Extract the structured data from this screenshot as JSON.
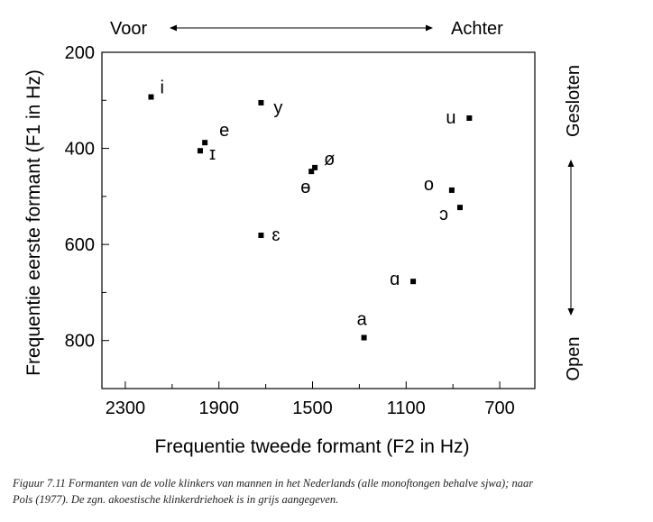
{
  "chart_data": {
    "type": "scatter",
    "xlabel": "Frequentie tweede formant (F2 in Hz)",
    "ylabel": "Frequentie eerste formant (F1 in Hz)",
    "xlim": [
      2400,
      550
    ],
    "ylim": [
      200,
      900
    ],
    "x_reversed": true,
    "y_reversed": true,
    "x_ticks": [
      2300,
      1900,
      1500,
      1100,
      700
    ],
    "y_ticks": [
      200,
      400,
      600,
      800
    ],
    "grid": false,
    "top_annotation": {
      "left": "Voor",
      "right": "Achter"
    },
    "right_annotation": {
      "top": "Gesloten",
      "bottom": "Open"
    },
    "points": [
      {
        "label": "i",
        "x": 2190,
        "y": 293
      },
      {
        "label": "y",
        "x": 1720,
        "y": 305
      },
      {
        "label": "u",
        "x": 830,
        "y": 337
      },
      {
        "label": "e",
        "x": 1960,
        "y": 388
      },
      {
        "label": "ɪ",
        "x": 1980,
        "y": 405
      },
      {
        "label": "ø",
        "x": 1490,
        "y": 440
      },
      {
        "label": "ɵ",
        "x": 1505,
        "y": 448
      },
      {
        "label": "o",
        "x": 905,
        "y": 487
      },
      {
        "label": "ɔ",
        "x": 870,
        "y": 523
      },
      {
        "label": "ɛ",
        "x": 1720,
        "y": 581
      },
      {
        "label": "ɑ",
        "x": 1070,
        "y": 677
      },
      {
        "label": "a",
        "x": 1280,
        "y": 794
      }
    ]
  },
  "caption": {
    "line1": "Figuur 7.11  Formanten van de volle klinkers van mannen in het Nederlands (alle monoftongen behalve sjwa); naar",
    "line2": "Pols (1977). De zgn. akoestische klinkerdriehoek is in grijs aangegeven."
  }
}
